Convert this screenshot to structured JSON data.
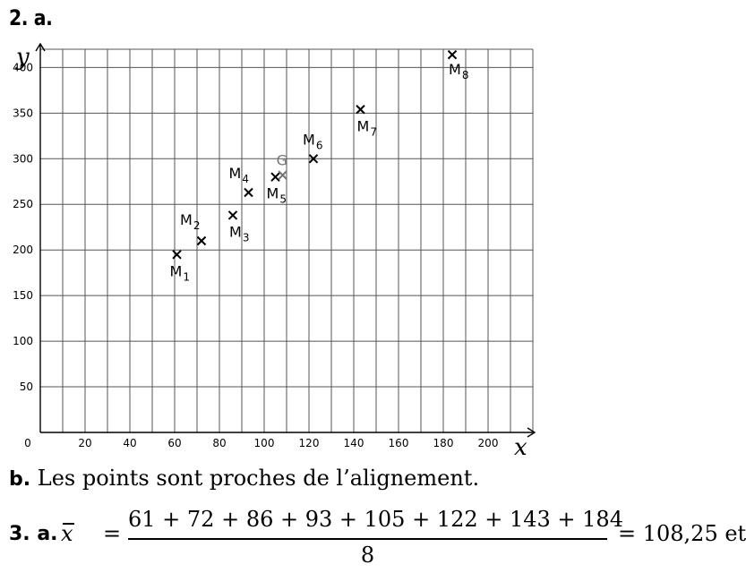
{
  "heading": "2. a.",
  "chart_data": {
    "type": "scatter",
    "xlabel": "x",
    "ylabel": "y",
    "xlim": [
      0,
      220
    ],
    "ylim": [
      0,
      420
    ],
    "x_ticks": [
      0,
      20,
      40,
      60,
      80,
      100,
      120,
      140,
      160,
      180,
      200
    ],
    "y_ticks": [
      50,
      100,
      150,
      200,
      250,
      300,
      350,
      400
    ],
    "grid": true,
    "points": [
      {
        "name": "M",
        "sub": "1",
        "x": 61,
        "y": 195
      },
      {
        "name": "M",
        "sub": "2",
        "x": 72,
        "y": 210
      },
      {
        "name": "M",
        "sub": "3",
        "x": 86,
        "y": 238
      },
      {
        "name": "M",
        "sub": "4",
        "x": 93,
        "y": 263
      },
      {
        "name": "M",
        "sub": "5",
        "x": 105,
        "y": 280
      },
      {
        "name": "M",
        "sub": "6",
        "x": 122,
        "y": 300
      },
      {
        "name": "M",
        "sub": "7",
        "x": 143,
        "y": 354
      },
      {
        "name": "M",
        "sub": "8",
        "x": 184,
        "y": 414
      }
    ],
    "mean_point": {
      "name": "G",
      "x": 108.25,
      "y": 282,
      "color": "#777777"
    }
  },
  "text_b": {
    "label": "b.",
    "sentence": "Les points sont proches de l’alignement."
  },
  "formula": {
    "label": "3. a.",
    "var": "x",
    "eq": "=",
    "numerator": "61 + 72 + 86 + 93 + 105 + 122 + 143 + 184",
    "denominator": "8",
    "result": "= 108,25 et"
  }
}
